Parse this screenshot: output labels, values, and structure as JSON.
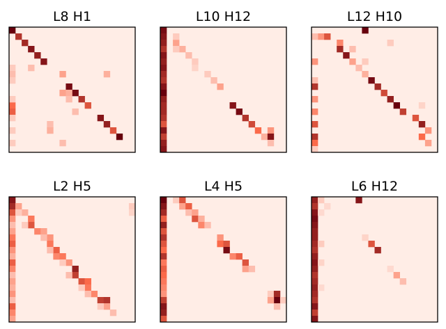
{
  "colormap": {
    "low": "#fff5f0",
    "mid": "#fb6a4a",
    "high": "#67000d"
  },
  "chart_data": [
    {
      "type": "heatmap",
      "title": "L8 H1",
      "size": 20,
      "cells": [
        [
          0,
          0,
          1.0
        ],
        [
          1,
          1,
          0.75
        ],
        [
          2,
          2,
          0.8
        ],
        [
          3,
          3,
          0.9
        ],
        [
          4,
          4,
          0.85
        ],
        [
          5,
          5,
          0.9
        ],
        [
          9,
          9,
          0.95
        ],
        [
          10,
          10,
          0.95
        ],
        [
          11,
          11,
          0.75
        ],
        [
          12,
          12,
          0.6
        ],
        [
          14,
          14,
          0.9
        ],
        [
          15,
          15,
          0.85
        ],
        [
          16,
          16,
          0.6
        ],
        [
          17,
          17,
          1.0
        ],
        [
          6,
          3,
          0.2
        ],
        [
          7,
          8,
          0.3
        ],
        [
          7,
          15,
          0.25
        ],
        [
          10,
          8,
          0.3
        ],
        [
          10,
          9,
          0.25
        ],
        [
          11,
          9,
          0.2
        ],
        [
          13,
          10,
          0.2
        ],
        [
          15,
          6,
          0.2
        ],
        [
          16,
          6,
          0.25
        ],
        [
          18,
          8,
          0.2
        ],
        [
          6,
          0,
          0.15
        ],
        [
          7,
          0,
          0.2
        ],
        [
          8,
          0,
          0.15
        ],
        [
          12,
          0,
          0.5
        ],
        [
          13,
          0,
          0.55
        ],
        [
          14,
          0,
          0.15
        ],
        [
          16,
          0,
          0.15
        ],
        [
          18,
          0,
          0.15
        ],
        [
          11,
          0,
          0.15
        ]
      ]
    },
    {
      "type": "heatmap",
      "title": "L10 H12",
      "size": 20,
      "cells": [
        [
          0,
          0,
          0.95
        ],
        [
          1,
          0,
          0.9
        ],
        [
          2,
          0,
          0.85
        ],
        [
          3,
          0,
          0.75
        ],
        [
          4,
          0,
          0.9
        ],
        [
          5,
          0,
          0.85
        ],
        [
          6,
          0,
          0.9
        ],
        [
          7,
          0,
          0.8
        ],
        [
          8,
          0,
          0.75
        ],
        [
          9,
          0,
          0.9
        ],
        [
          10,
          0,
          1.0
        ],
        [
          11,
          0,
          0.85
        ],
        [
          12,
          0,
          0.8
        ],
        [
          13,
          0,
          0.8
        ],
        [
          14,
          0,
          0.75
        ],
        [
          15,
          0,
          0.6
        ],
        [
          16,
          0,
          0.9
        ],
        [
          17,
          0,
          0.7
        ],
        [
          18,
          0,
          0.85
        ],
        [
          19,
          0,
          0.9
        ],
        [
          2,
          2,
          0.3
        ],
        [
          3,
          3,
          0.25
        ],
        [
          4,
          4,
          0.2
        ],
        [
          5,
          5,
          0.15
        ],
        [
          7,
          7,
          0.15
        ],
        [
          8,
          8,
          0.2
        ],
        [
          9,
          9,
          0.3
        ],
        [
          12,
          11,
          0.9
        ],
        [
          13,
          12,
          0.95
        ],
        [
          14,
          13,
          0.75
        ],
        [
          15,
          14,
          0.65
        ],
        [
          16,
          15,
          0.5
        ],
        [
          17,
          16,
          0.25
        ],
        [
          16,
          17,
          0.35
        ],
        [
          17,
          17,
          0.9
        ],
        [
          18,
          17,
          0.2
        ],
        [
          1,
          2,
          0.15
        ],
        [
          3,
          2,
          0.15
        ],
        [
          6,
          5,
          0.12
        ]
      ]
    },
    {
      "type": "heatmap",
      "title": "L12 H10",
      "size": 20,
      "cells": [
        [
          0,
          8,
          1.0
        ],
        [
          1,
          1,
          0.35
        ],
        [
          1,
          2,
          0.6
        ],
        [
          2,
          4,
          0.4
        ],
        [
          3,
          4,
          0.8
        ],
        [
          4,
          5,
          0.9
        ],
        [
          5,
          6,
          0.3
        ],
        [
          6,
          7,
          0.2
        ],
        [
          7,
          8,
          0.25
        ],
        [
          8,
          9,
          0.95
        ],
        [
          9,
          10,
          0.8
        ],
        [
          10,
          11,
          0.65
        ],
        [
          11,
          12,
          0.85
        ],
        [
          12,
          13,
          1.0
        ],
        [
          13,
          14,
          0.7
        ],
        [
          14,
          16,
          0.6
        ],
        [
          15,
          17,
          0.85
        ],
        [
          16,
          18,
          0.35
        ],
        [
          17,
          17,
          0.5
        ],
        [
          18,
          18,
          0.3
        ],
        [
          1,
          0,
          0.2
        ],
        [
          5,
          0,
          0.35
        ],
        [
          8,
          0,
          0.2
        ],
        [
          9,
          0,
          0.75
        ],
        [
          11,
          0,
          0.35
        ],
        [
          13,
          0,
          0.4
        ],
        [
          15,
          0,
          0.6
        ],
        [
          17,
          0,
          0.75
        ],
        [
          18,
          0,
          0.5
        ],
        [
          19,
          0,
          0.15
        ],
        [
          3,
          6,
          0.2
        ],
        [
          5,
          8,
          0.15
        ],
        [
          2,
          12,
          0.15
        ],
        [
          12,
          17,
          0.12
        ]
      ]
    },
    {
      "type": "heatmap",
      "title": "L2 H5",
      "size": 20,
      "cells": [
        [
          0,
          0,
          0.9
        ],
        [
          1,
          0,
          0.8
        ],
        [
          2,
          0,
          0.6
        ],
        [
          3,
          0,
          0.35
        ],
        [
          4,
          0,
          0.2
        ],
        [
          5,
          0,
          0.3
        ],
        [
          6,
          0,
          0.45
        ],
        [
          7,
          0,
          0.55
        ],
        [
          8,
          0,
          0.35
        ],
        [
          9,
          0,
          0.25
        ],
        [
          10,
          0,
          0.55
        ],
        [
          11,
          0,
          0.4
        ],
        [
          12,
          0,
          0.2
        ],
        [
          13,
          0,
          0.3
        ],
        [
          14,
          0,
          0.25
        ],
        [
          15,
          0,
          0.35
        ],
        [
          16,
          0,
          0.2
        ],
        [
          17,
          0,
          0.55
        ],
        [
          18,
          0,
          0.4
        ],
        [
          19,
          0,
          0.3
        ],
        [
          1,
          1,
          0.3
        ],
        [
          2,
          2,
          0.25
        ],
        [
          3,
          3,
          0.45
        ],
        [
          4,
          3,
          0.6
        ],
        [
          5,
          4,
          0.4
        ],
        [
          5,
          5,
          0.3
        ],
        [
          6,
          6,
          0.35
        ],
        [
          7,
          6,
          0.45
        ],
        [
          8,
          7,
          0.55
        ],
        [
          9,
          7,
          0.4
        ],
        [
          9,
          8,
          0.45
        ],
        [
          10,
          9,
          0.35
        ],
        [
          11,
          10,
          0.85
        ],
        [
          12,
          10,
          0.7
        ],
        [
          13,
          11,
          0.6
        ],
        [
          13,
          12,
          0.5
        ],
        [
          14,
          12,
          0.45
        ],
        [
          15,
          13,
          0.4
        ],
        [
          16,
          14,
          0.7
        ],
        [
          16,
          15,
          0.75
        ],
        [
          17,
          15,
          0.3
        ],
        [
          18,
          16,
          0.2
        ],
        [
          2,
          1,
          0.15
        ],
        [
          4,
          2,
          0.15
        ],
        [
          6,
          5,
          0.2
        ],
        [
          8,
          6,
          0.2
        ],
        [
          10,
          8,
          0.15
        ],
        [
          12,
          9,
          0.2
        ],
        [
          14,
          11,
          0.15
        ],
        [
          15,
          12,
          0.2
        ],
        [
          17,
          14,
          0.15
        ],
        [
          1,
          19,
          0.15
        ],
        [
          2,
          19,
          0.12
        ]
      ]
    },
    {
      "type": "heatmap",
      "title": "L4 H5",
      "size": 20,
      "cells": [
        [
          0,
          0,
          1.0
        ],
        [
          1,
          0,
          0.9
        ],
        [
          2,
          0,
          0.8
        ],
        [
          3,
          0,
          0.55
        ],
        [
          4,
          0,
          0.85
        ],
        [
          5,
          0,
          0.6
        ],
        [
          6,
          0,
          0.75
        ],
        [
          7,
          0,
          0.6
        ],
        [
          8,
          0,
          0.5
        ],
        [
          9,
          0,
          0.75
        ],
        [
          10,
          0,
          0.45
        ],
        [
          11,
          0,
          0.55
        ],
        [
          12,
          0,
          0.5
        ],
        [
          13,
          0,
          0.45
        ],
        [
          14,
          0,
          0.4
        ],
        [
          15,
          0,
          0.35
        ],
        [
          16,
          0,
          0.7
        ],
        [
          17,
          0,
          0.9
        ],
        [
          18,
          0,
          0.85
        ],
        [
          19,
          0,
          0.6
        ],
        [
          0,
          2,
          0.15
        ],
        [
          0,
          3,
          0.6
        ],
        [
          1,
          3,
          0.3
        ],
        [
          1,
          4,
          0.55
        ],
        [
          2,
          4,
          0.2
        ],
        [
          2,
          5,
          0.3
        ],
        [
          3,
          5,
          0.6
        ],
        [
          3,
          6,
          0.25
        ],
        [
          4,
          6,
          0.4
        ],
        [
          4,
          7,
          0.2
        ],
        [
          6,
          9,
          0.35
        ],
        [
          7,
          9,
          0.5
        ],
        [
          7,
          10,
          0.6
        ],
        [
          8,
          10,
          0.95
        ],
        [
          9,
          11,
          0.4
        ],
        [
          9,
          12,
          0.55
        ],
        [
          10,
          13,
          0.6
        ],
        [
          11,
          13,
          0.3
        ],
        [
          11,
          14,
          0.2
        ],
        [
          15,
          17,
          0.15
        ],
        [
          15,
          18,
          0.8
        ],
        [
          16,
          18,
          1.0
        ],
        [
          16,
          17,
          0.3
        ],
        [
          17,
          18,
          0.2
        ],
        [
          16,
          19,
          0.15
        ]
      ]
    },
    {
      "type": "heatmap",
      "title": "L6 H12",
      "size": 20,
      "cells": [
        [
          0,
          0,
          0.85
        ],
        [
          1,
          0,
          0.75
        ],
        [
          2,
          0,
          0.9
        ],
        [
          3,
          0,
          0.95
        ],
        [
          4,
          0,
          0.9
        ],
        [
          5,
          0,
          0.85
        ],
        [
          6,
          0,
          0.85
        ],
        [
          7,
          0,
          0.8
        ],
        [
          8,
          0,
          0.75
        ],
        [
          9,
          0,
          0.85
        ],
        [
          10,
          0,
          0.9
        ],
        [
          11,
          0,
          0.85
        ],
        [
          12,
          0,
          0.75
        ],
        [
          13,
          0,
          0.8
        ],
        [
          14,
          0,
          0.85
        ],
        [
          15,
          0,
          0.8
        ],
        [
          16,
          0,
          0.75
        ],
        [
          17,
          0,
          0.9
        ],
        [
          18,
          0,
          0.7
        ],
        [
          19,
          0,
          0.9
        ],
        [
          0,
          7,
          0.9
        ],
        [
          7,
          9,
          0.6
        ],
        [
          8,
          10,
          0.8
        ],
        [
          12,
          13,
          0.3
        ],
        [
          13,
          14,
          0.2
        ],
        [
          0,
          1,
          0.15
        ],
        [
          1,
          2,
          0.1
        ],
        [
          2,
          1,
          0.1
        ],
        [
          7,
          1,
          0.15
        ],
        [
          10,
          1,
          0.12
        ],
        [
          14,
          1,
          0.1
        ],
        [
          6,
          8,
          0.12
        ],
        [
          11,
          12,
          0.1
        ]
      ]
    }
  ]
}
